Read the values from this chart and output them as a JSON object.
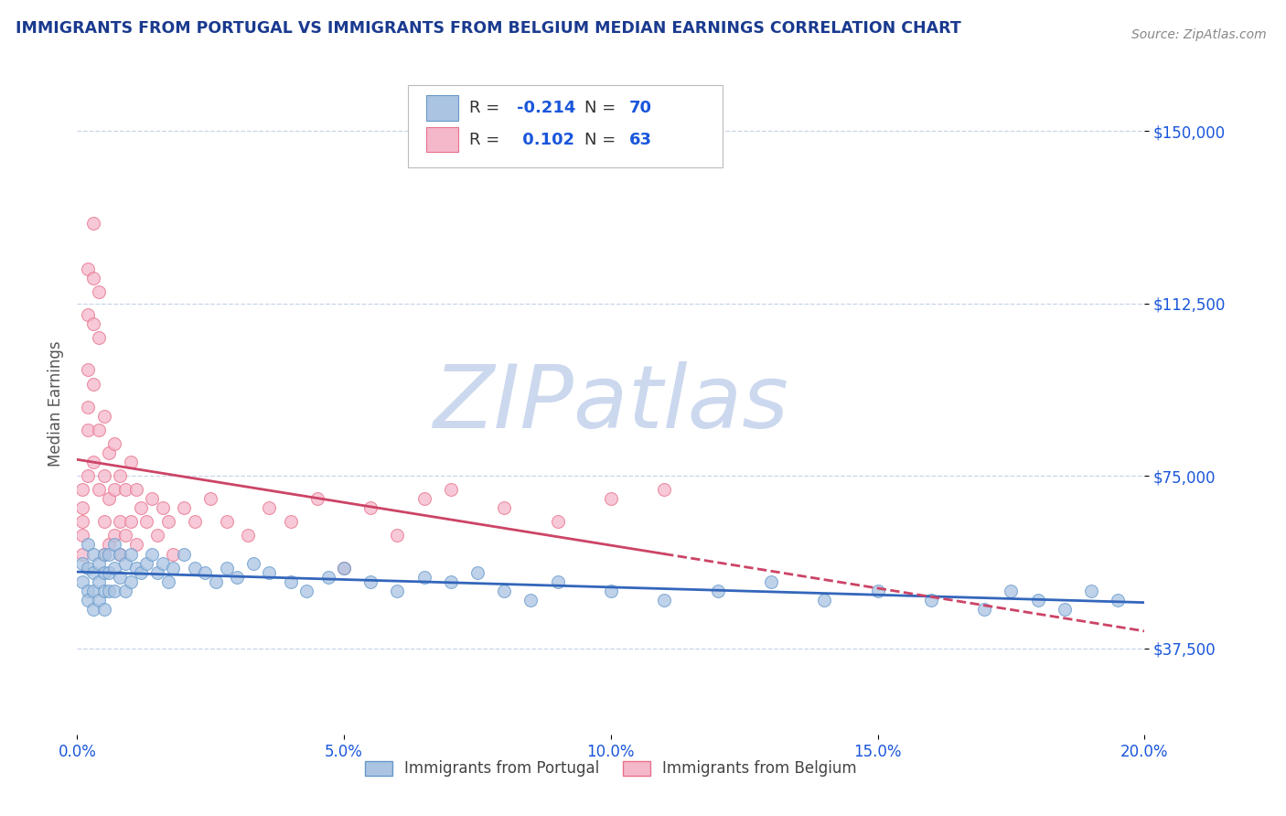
{
  "title": "IMMIGRANTS FROM PORTUGAL VS IMMIGRANTS FROM BELGIUM MEDIAN EARNINGS CORRELATION CHART",
  "source": "Source: ZipAtlas.com",
  "ylabel_label": "Median Earnings",
  "x_min": 0.0,
  "x_max": 0.2,
  "y_min": 18750,
  "y_max": 162500,
  "yticks": [
    37500,
    75000,
    112500,
    150000
  ],
  "xticks": [
    0.0,
    0.05,
    0.1,
    0.15,
    0.2
  ],
  "portugal_color": "#aac4e2",
  "portugal_edge": "#6699cc",
  "portugal_line_color": "#3366bb",
  "portugal_R": -0.214,
  "portugal_N": 70,
  "belgium_color": "#f5b8cb",
  "belgium_edge": "#e8708a",
  "belgium_line_color": "#cc4466",
  "belgium_R": 0.102,
  "belgium_N": 63,
  "legend_R_color": "#1a56db",
  "watermark": "ZIPatlas",
  "watermark_color": "#ccd8ee",
  "title_color": "#1a3a8f",
  "axis_label_color": "#555555",
  "tick_label_color": "#1a56db",
  "grid_color": "#c8d4e8",
  "background_color": "#ffffff",
  "portugal_scatter_x": [
    0.001,
    0.001,
    0.002,
    0.002,
    0.002,
    0.002,
    0.003,
    0.003,
    0.003,
    0.003,
    0.004,
    0.004,
    0.004,
    0.005,
    0.005,
    0.005,
    0.005,
    0.006,
    0.006,
    0.006,
    0.007,
    0.007,
    0.007,
    0.008,
    0.008,
    0.009,
    0.009,
    0.01,
    0.01,
    0.011,
    0.012,
    0.013,
    0.014,
    0.015,
    0.016,
    0.017,
    0.018,
    0.02,
    0.022,
    0.024,
    0.026,
    0.028,
    0.03,
    0.033,
    0.036,
    0.04,
    0.043,
    0.047,
    0.05,
    0.055,
    0.06,
    0.065,
    0.07,
    0.075,
    0.08,
    0.085,
    0.09,
    0.1,
    0.11,
    0.12,
    0.13,
    0.14,
    0.15,
    0.16,
    0.17,
    0.175,
    0.18,
    0.185,
    0.19,
    0.195
  ],
  "portugal_scatter_y": [
    56000,
    52000,
    60000,
    55000,
    50000,
    48000,
    58000,
    54000,
    50000,
    46000,
    56000,
    52000,
    48000,
    58000,
    54000,
    50000,
    46000,
    58000,
    54000,
    50000,
    60000,
    55000,
    50000,
    58000,
    53000,
    56000,
    50000,
    58000,
    52000,
    55000,
    54000,
    56000,
    58000,
    54000,
    56000,
    52000,
    55000,
    58000,
    55000,
    54000,
    52000,
    55000,
    53000,
    56000,
    54000,
    52000,
    50000,
    53000,
    55000,
    52000,
    50000,
    53000,
    52000,
    54000,
    50000,
    48000,
    52000,
    50000,
    48000,
    50000,
    52000,
    48000,
    50000,
    48000,
    46000,
    50000,
    48000,
    46000,
    50000,
    48000
  ],
  "belgium_scatter_x": [
    0.001,
    0.001,
    0.001,
    0.001,
    0.001,
    0.002,
    0.002,
    0.002,
    0.002,
    0.002,
    0.002,
    0.003,
    0.003,
    0.003,
    0.003,
    0.003,
    0.004,
    0.004,
    0.004,
    0.004,
    0.005,
    0.005,
    0.005,
    0.005,
    0.006,
    0.006,
    0.006,
    0.007,
    0.007,
    0.007,
    0.008,
    0.008,
    0.008,
    0.009,
    0.009,
    0.01,
    0.01,
    0.011,
    0.011,
    0.012,
    0.013,
    0.014,
    0.015,
    0.016,
    0.017,
    0.018,
    0.02,
    0.022,
    0.025,
    0.028,
    0.032,
    0.036,
    0.04,
    0.045,
    0.05,
    0.055,
    0.06,
    0.065,
    0.07,
    0.08,
    0.09,
    0.1,
    0.11
  ],
  "belgium_scatter_y": [
    65000,
    62000,
    58000,
    72000,
    68000,
    120000,
    110000,
    98000,
    90000,
    85000,
    75000,
    130000,
    118000,
    108000,
    95000,
    78000,
    115000,
    105000,
    85000,
    72000,
    88000,
    75000,
    65000,
    58000,
    80000,
    70000,
    60000,
    82000,
    72000,
    62000,
    75000,
    65000,
    58000,
    72000,
    62000,
    78000,
    65000,
    72000,
    60000,
    68000,
    65000,
    70000,
    62000,
    68000,
    65000,
    58000,
    68000,
    65000,
    70000,
    65000,
    62000,
    68000,
    65000,
    70000,
    55000,
    68000,
    62000,
    70000,
    72000,
    68000,
    65000,
    70000,
    72000
  ]
}
